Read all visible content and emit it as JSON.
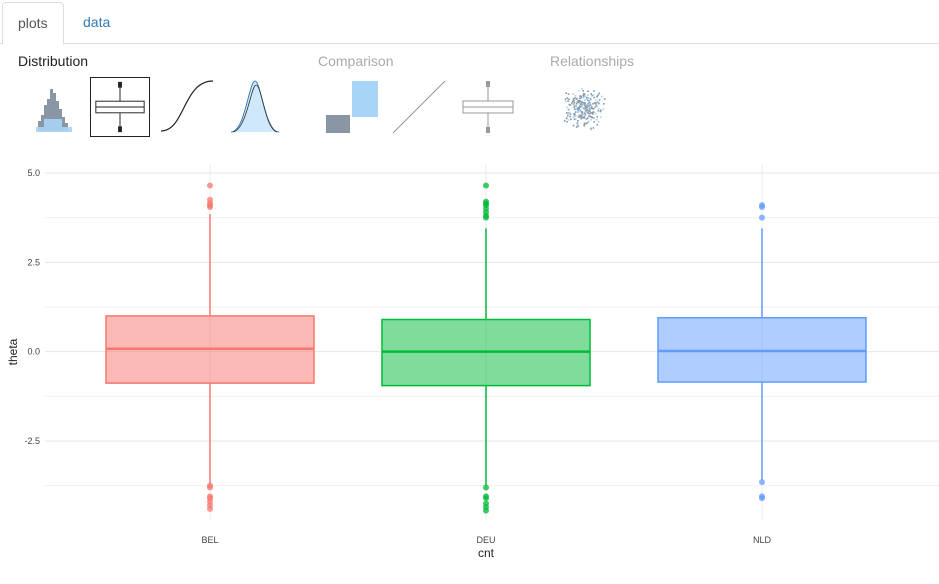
{
  "tabs": [
    {
      "label": "plots",
      "active": true
    },
    {
      "label": "data",
      "active": false
    }
  ],
  "sections": {
    "distribution": "Distribution",
    "comparison": "Comparison",
    "relationships": "Relationships"
  },
  "thumbnails": [
    {
      "name": "histogram-thumb-icon",
      "selected": false
    },
    {
      "name": "boxplot-thumb-icon",
      "selected": true
    },
    {
      "name": "ecdf-thumb-icon",
      "selected": false
    },
    {
      "name": "density-thumb-icon",
      "selected": false
    },
    {
      "name": "bar-comparison-thumb-icon",
      "selected": false
    },
    {
      "name": "line-comparison-thumb-icon",
      "selected": false
    },
    {
      "name": "boxplot-comparison-thumb-icon",
      "selected": false
    },
    {
      "name": "scatter-thumb-icon",
      "selected": false
    }
  ],
  "chart_data": {
    "type": "boxplot",
    "xlabel": "cnt",
    "ylabel": "theta",
    "ylim": [
      -4.6,
      5.2
    ],
    "yticks": [
      5.0,
      2.5,
      0.0,
      -2.5
    ],
    "ytick_labels": [
      "5.0",
      "2.5",
      "0.0",
      "-2.5"
    ],
    "grid": true,
    "categories": [
      "BEL",
      "DEU",
      "NLD"
    ],
    "series": [
      {
        "category": "BEL",
        "color": "#F8766D",
        "q1": -0.88,
        "median": 0.08,
        "q3": 1.0,
        "whisker_low": -3.7,
        "whisker_high": 3.85,
        "outliers_high": [
          4.65,
          4.25,
          4.15,
          4.1,
          4.05
        ],
        "outliers_low": [
          -3.75,
          -3.8,
          -4.05,
          -4.1,
          -4.2,
          -4.3,
          -4.4
        ]
      },
      {
        "category": "DEU",
        "color": "#00BA38",
        "q1": -0.95,
        "median": 0.0,
        "q3": 0.9,
        "whisker_low": -3.75,
        "whisker_high": 3.45,
        "outliers_high": [
          4.65,
          4.2,
          4.15,
          4.1,
          4.0,
          3.9,
          3.8,
          3.75
        ],
        "outliers_low": [
          -3.8,
          -4.05,
          -4.1,
          -4.25,
          -4.35,
          -4.45
        ]
      },
      {
        "category": "NLD",
        "color": "#619CFF",
        "q1": -0.85,
        "median": 0.02,
        "q3": 0.95,
        "whisker_low": -3.6,
        "whisker_high": 3.45,
        "outliers_high": [
          4.1,
          4.05,
          3.75
        ],
        "outliers_low": [
          -3.65,
          -4.05,
          -4.1
        ]
      }
    ]
  }
}
